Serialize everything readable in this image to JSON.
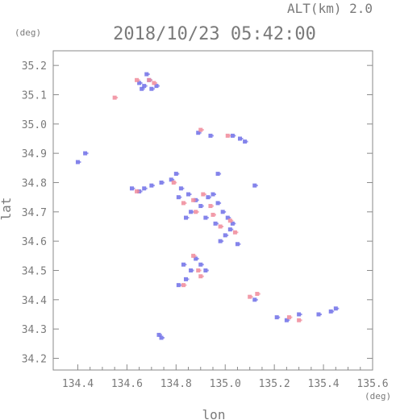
{
  "chart_data": {
    "type": "scatter",
    "title": "2018/10/23 05:42:00",
    "subtitle": "ALT(km) 2.0",
    "xlabel": "lon",
    "ylabel": "lat",
    "xunit": "(deg)",
    "yunit": "(deg)",
    "xlim": [
      134.3,
      135.6
    ],
    "ylim": [
      34.16,
      35.25
    ],
    "xticks": [
      "134.4",
      "134.6",
      "134.8",
      "135.0",
      "135.2",
      "135.4",
      "135.6"
    ],
    "yticks": [
      "34.2",
      "34.3",
      "34.4",
      "34.5",
      "34.6",
      "34.7",
      "34.8",
      "34.9",
      "35.0",
      "35.1",
      "35.2"
    ],
    "grid": false,
    "colors": {
      "negative": "#6f6fe8",
      "positive": "#f08a9a",
      "axis": "#8a8a8a"
    },
    "series": [
      {
        "color": "negative",
        "points": [
          [
            134.65,
            35.14
          ],
          [
            134.67,
            35.13
          ],
          [
            134.69,
            35.15
          ],
          [
            134.68,
            35.17
          ],
          [
            134.7,
            35.12
          ],
          [
            134.72,
            35.13
          ],
          [
            134.66,
            35.12
          ],
          [
            134.4,
            34.87
          ],
          [
            134.43,
            34.9
          ],
          [
            134.62,
            34.78
          ],
          [
            134.65,
            34.77
          ],
          [
            134.67,
            34.78
          ],
          [
            134.7,
            34.79
          ],
          [
            134.74,
            34.8
          ],
          [
            134.78,
            34.81
          ],
          [
            134.8,
            34.83
          ],
          [
            134.82,
            34.78
          ],
          [
            134.81,
            34.75
          ],
          [
            134.85,
            34.76
          ],
          [
            134.88,
            34.74
          ],
          [
            134.9,
            34.72
          ],
          [
            134.93,
            34.75
          ],
          [
            134.95,
            34.76
          ],
          [
            134.97,
            34.73
          ],
          [
            134.99,
            34.7
          ],
          [
            135.01,
            34.68
          ],
          [
            135.03,
            34.66
          ],
          [
            134.86,
            34.7
          ],
          [
            134.84,
            34.68
          ],
          [
            134.92,
            34.68
          ],
          [
            134.96,
            34.66
          ],
          [
            135.0,
            34.62
          ],
          [
            135.02,
            34.64
          ],
          [
            134.98,
            34.6
          ],
          [
            135.05,
            34.59
          ],
          [
            134.83,
            34.52
          ],
          [
            134.86,
            34.5
          ],
          [
            134.88,
            34.54
          ],
          [
            134.9,
            34.52
          ],
          [
            134.92,
            34.5
          ],
          [
            134.84,
            34.47
          ],
          [
            134.81,
            34.45
          ],
          [
            134.89,
            34.97
          ],
          [
            134.94,
            34.96
          ],
          [
            135.03,
            34.96
          ],
          [
            135.06,
            34.95
          ],
          [
            135.08,
            34.94
          ],
          [
            134.97,
            34.83
          ],
          [
            135.12,
            34.79
          ],
          [
            135.12,
            34.4
          ],
          [
            135.21,
            34.34
          ],
          [
            135.25,
            34.33
          ],
          [
            135.3,
            34.35
          ],
          [
            135.38,
            34.35
          ],
          [
            135.45,
            34.37
          ],
          [
            135.43,
            34.36
          ],
          [
            134.73,
            34.28
          ],
          [
            134.74,
            34.27
          ]
        ]
      },
      {
        "color": "positive",
        "points": [
          [
            134.55,
            35.09
          ],
          [
            134.64,
            35.15
          ],
          [
            134.69,
            35.15
          ],
          [
            134.71,
            35.14
          ],
          [
            134.64,
            34.77
          ],
          [
            134.79,
            34.8
          ],
          [
            134.83,
            34.73
          ],
          [
            134.87,
            34.74
          ],
          [
            134.91,
            34.76
          ],
          [
            134.94,
            34.72
          ],
          [
            134.98,
            34.65
          ],
          [
            135.02,
            34.67
          ],
          [
            134.88,
            34.7
          ],
          [
            134.95,
            34.69
          ],
          [
            135.04,
            34.63
          ],
          [
            134.9,
            34.48
          ],
          [
            134.87,
            34.55
          ],
          [
            134.89,
            34.5
          ],
          [
            134.83,
            34.45
          ],
          [
            135.1,
            34.41
          ],
          [
            135.13,
            34.42
          ],
          [
            135.3,
            34.33
          ],
          [
            135.26,
            34.34
          ],
          [
            134.9,
            34.98
          ],
          [
            135.01,
            34.96
          ]
        ]
      }
    ]
  }
}
